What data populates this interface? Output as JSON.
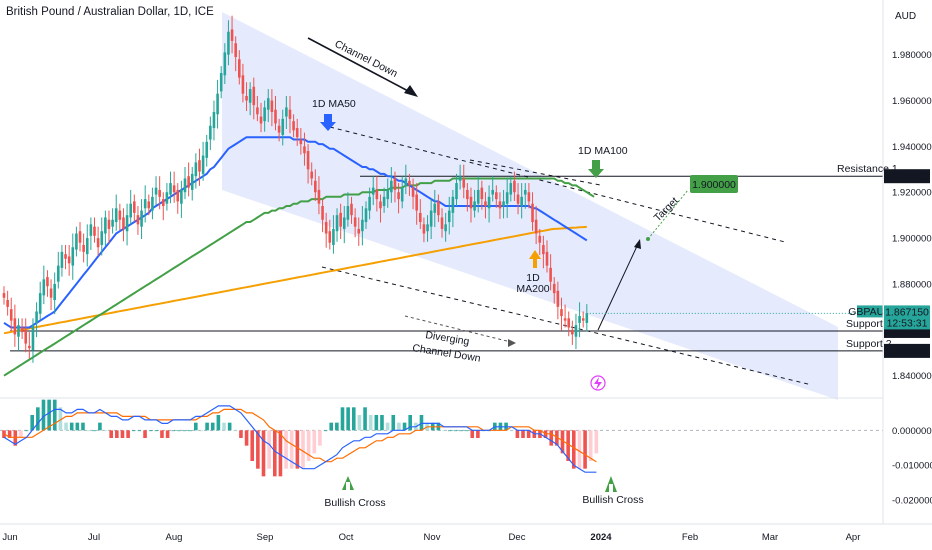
{
  "header": {
    "title": "British Pound / Australian Dollar, 1D, ICE",
    "currency": "AUD"
  },
  "colors": {
    "bull": "#26a69a",
    "bear": "#ef5350",
    "ma50": "#2962ff",
    "ma100": "#43a047",
    "ma200": "#f59f00",
    "channel": "#cfd8fb",
    "macd": "#2962ff",
    "signal": "#ff6d00"
  },
  "chart_data": {
    "type": "candlestick",
    "symbol": "GBPAUD",
    "price_axis": {
      "ticks": [
        "1.980000",
        "1.960000",
        "1.940000",
        "1.920000",
        "1.900000",
        "1.880000",
        "1.840000"
      ],
      "min": 1.832,
      "max": 1.996
    },
    "time_axis": [
      "Jun",
      "Jul",
      "Aug",
      "Sep",
      "Oct",
      "Nov",
      "Dec",
      "2024",
      "Feb",
      "Mar",
      "Apr"
    ],
    "last_price": "1.867150",
    "countdown": "12:53:31",
    "levels": [
      {
        "name": "Resistance 1",
        "value": 1.927,
        "label": "1.927000"
      },
      {
        "name": "Support 1",
        "value": 1.8595,
        "label": "1.859550"
      },
      {
        "name": "Support 2",
        "value": 1.8508,
        "label": "1.850815"
      }
    ],
    "target": {
      "value": 1.9,
      "label": "1.900000",
      "text": "Target"
    },
    "annotations": {
      "channel_down": "Channel Down",
      "ma50": "1D MA50",
      "ma100": "1D MA100",
      "ma200_line1": "1D",
      "ma200_line2": "MA200",
      "diverging_line1": "Diverging",
      "diverging_line2": "Channel Down",
      "bullish_cross_1": "Bullish Cross",
      "bullish_cross_2": "Bullish Cross"
    },
    "macd_axis": {
      "ticks": [
        "0.000000",
        "-0.010000",
        "-0.020000"
      ],
      "min": -0.024,
      "max": 0.0087
    },
    "close_series": [
      1.874,
      1.87,
      1.864,
      1.858,
      1.862,
      1.859,
      1.854,
      1.852,
      1.862,
      1.868,
      1.876,
      1.882,
      1.879,
      1.874,
      1.88,
      1.888,
      1.894,
      1.891,
      1.889,
      1.896,
      1.902,
      1.898,
      1.894,
      1.9,
      1.906,
      1.901,
      1.896,
      1.903,
      1.909,
      1.904,
      1.908,
      1.913,
      1.908,
      1.904,
      1.91,
      1.915,
      1.911,
      1.906,
      1.912,
      1.917,
      1.913,
      1.918,
      1.922,
      1.918,
      1.914,
      1.92,
      1.924,
      1.92,
      1.916,
      1.921,
      1.926,
      1.922,
      1.928,
      1.933,
      1.929,
      1.936,
      1.942,
      1.949,
      1.955,
      1.963,
      1.972,
      1.981,
      1.99,
      1.986,
      1.979,
      1.97,
      1.963,
      1.96,
      1.965,
      1.958,
      1.954,
      1.95,
      1.957,
      1.961,
      1.955,
      1.95,
      1.946,
      1.952,
      1.957,
      1.952,
      1.947,
      1.944,
      1.941,
      1.937,
      1.93,
      1.926,
      1.92,
      1.915,
      1.908,
      1.902,
      1.898,
      1.904,
      1.91,
      1.905,
      1.909,
      1.914,
      1.91,
      1.905,
      1.902,
      1.908,
      1.913,
      1.918,
      1.922,
      1.917,
      1.913,
      1.918,
      1.921,
      1.925,
      1.921,
      1.917,
      1.922,
      1.926,
      1.923,
      1.918,
      1.912,
      1.907,
      1.902,
      1.906,
      1.912,
      1.915,
      1.91,
      1.904,
      1.906,
      1.912,
      1.918,
      1.924,
      1.927,
      1.922,
      1.917,
      1.913,
      1.916,
      1.921,
      1.917,
      1.914,
      1.918,
      1.921,
      1.917,
      1.913,
      1.916,
      1.92,
      1.924,
      1.92,
      1.915,
      1.918,
      1.921,
      1.916,
      1.907,
      1.902,
      1.898,
      1.893,
      1.888,
      1.881,
      1.876,
      1.87,
      1.866,
      1.864,
      1.861,
      1.858,
      1.862,
      1.866,
      1.864,
      1.8672
    ],
    "ma50": [
      1.863,
      1.862,
      1.861,
      1.861,
      1.861,
      1.861,
      1.861,
      1.861,
      1.862,
      1.863,
      1.864,
      1.865,
      1.866,
      1.867,
      1.868,
      1.87,
      1.872,
      1.874,
      1.876,
      1.878,
      1.88,
      1.882,
      1.884,
      1.886,
      1.888,
      1.89,
      1.892,
      1.894,
      1.896,
      1.898,
      1.9,
      1.902,
      1.903,
      1.904,
      1.905,
      1.906,
      1.907,
      1.908,
      1.909,
      1.91,
      1.911,
      1.913,
      1.914,
      1.915,
      1.916,
      1.917,
      1.918,
      1.919,
      1.92,
      1.921,
      1.922,
      1.923,
      1.924,
      1.925,
      1.926,
      1.927,
      1.928,
      1.93,
      1.931,
      1.933,
      1.935,
      1.937,
      1.939,
      1.94,
      1.941,
      1.942,
      1.943,
      1.944,
      1.944,
      1.944,
      1.944,
      1.944,
      1.944,
      1.944,
      1.944,
      1.944,
      1.944,
      1.944,
      1.944,
      1.944,
      1.943,
      1.943,
      1.943,
      1.943,
      1.942,
      1.942,
      1.942,
      1.941,
      1.941,
      1.94,
      1.939,
      1.939,
      1.938,
      1.937,
      1.936,
      1.935,
      1.934,
      1.933,
      1.932,
      1.931,
      1.931,
      1.93,
      1.93,
      1.929,
      1.928,
      1.928,
      1.927,
      1.927,
      1.926,
      1.925,
      1.925,
      1.924,
      1.923,
      1.922,
      1.921,
      1.92,
      1.919,
      1.918,
      1.917,
      1.916,
      1.916,
      1.915,
      1.914,
      1.914,
      1.914,
      1.914,
      1.914,
      1.914,
      1.914,
      1.914,
      1.914,
      1.914,
      1.914,
      1.914,
      1.914,
      1.914,
      1.914,
      1.914,
      1.914,
      1.914,
      1.914,
      1.914,
      1.914,
      1.914,
      1.914,
      1.914,
      1.913,
      1.913,
      1.912,
      1.911,
      1.91,
      1.909,
      1.908,
      1.907,
      1.906,
      1.905,
      1.904,
      1.903,
      1.902,
      1.901,
      1.9,
      1.899
    ],
    "ma100": [
      1.84,
      1.841,
      1.842,
      1.843,
      1.844,
      1.845,
      1.846,
      1.847,
      1.848,
      1.849,
      1.85,
      1.851,
      1.852,
      1.853,
      1.854,
      1.855,
      1.856,
      1.857,
      1.858,
      1.859,
      1.86,
      1.861,
      1.862,
      1.863,
      1.864,
      1.865,
      1.866,
      1.867,
      1.868,
      1.869,
      1.87,
      1.871,
      1.872,
      1.873,
      1.874,
      1.875,
      1.876,
      1.877,
      1.878,
      1.879,
      1.88,
      1.881,
      1.882,
      1.883,
      1.884,
      1.885,
      1.886,
      1.887,
      1.888,
      1.889,
      1.89,
      1.891,
      1.892,
      1.893,
      1.894,
      1.895,
      1.896,
      1.897,
      1.898,
      1.899,
      1.9,
      1.901,
      1.902,
      1.903,
      1.904,
      1.905,
      1.906,
      1.907,
      1.907,
      1.908,
      1.909,
      1.91,
      1.911,
      1.911,
      1.912,
      1.912,
      1.913,
      1.913,
      1.914,
      1.914,
      1.915,
      1.915,
      1.916,
      1.916,
      1.916,
      1.917,
      1.917,
      1.917,
      1.917,
      1.918,
      1.918,
      1.918,
      1.918,
      1.918,
      1.919,
      1.919,
      1.919,
      1.919,
      1.919,
      1.92,
      1.92,
      1.92,
      1.92,
      1.921,
      1.921,
      1.921,
      1.921,
      1.922,
      1.922,
      1.922,
      1.922,
      1.923,
      1.923,
      1.923,
      1.923,
      1.924,
      1.924,
      1.924,
      1.924,
      1.925,
      1.925,
      1.925,
      1.925,
      1.925,
      1.926,
      1.926,
      1.926,
      1.926,
      1.926,
      1.926,
      1.926,
      1.926,
      1.926,
      1.926,
      1.926,
      1.926,
      1.926,
      1.926,
      1.926,
      1.926,
      1.926,
      1.926,
      1.926,
      1.926,
      1.926,
      1.926,
      1.926,
      1.926,
      1.926,
      1.926,
      1.926,
      1.926,
      1.926,
      1.925,
      1.925,
      1.924,
      1.924,
      1.923,
      1.923,
      1.922,
      1.921,
      1.92,
      1.919,
      1.918
    ],
    "ma200": [
      1.8585,
      1.8588,
      1.8591,
      1.8594,
      1.8597,
      1.86,
      1.8603,
      1.8606,
      1.8609,
      1.8612,
      1.8615,
      1.8618,
      1.8621,
      1.8624,
      1.8627,
      1.863,
      1.8633,
      1.8636,
      1.8639,
      1.8642,
      1.8645,
      1.8648,
      1.8651,
      1.8654,
      1.8657,
      1.866,
      1.8663,
      1.8666,
      1.8669,
      1.8672,
      1.8675,
      1.8678,
      1.8681,
      1.8684,
      1.8687,
      1.869,
      1.8693,
      1.8696,
      1.8699,
      1.8702,
      1.8705,
      1.8708,
      1.8711,
      1.8714,
      1.8717,
      1.872,
      1.8723,
      1.8726,
      1.8729,
      1.8732,
      1.8735,
      1.8738,
      1.8741,
      1.8744,
      1.8747,
      1.875,
      1.8753,
      1.8756,
      1.8759,
      1.8762,
      1.8765,
      1.8768,
      1.8771,
      1.8774,
      1.8777,
      1.878,
      1.8783,
      1.8786,
      1.8789,
      1.8792,
      1.8795,
      1.8798,
      1.8801,
      1.8804,
      1.8807,
      1.881,
      1.8813,
      1.8816,
      1.8819,
      1.8822,
      1.8825,
      1.8828,
      1.8831,
      1.8834,
      1.8837,
      1.884,
      1.8843,
      1.8846,
      1.8849,
      1.8852,
      1.8855,
      1.8858,
      1.8861,
      1.8864,
      1.8867,
      1.887,
      1.8873,
      1.8876,
      1.8879,
      1.8882,
      1.8885,
      1.8888,
      1.8891,
      1.8894,
      1.8897,
      1.89,
      1.8903,
      1.8906,
      1.8909,
      1.8912,
      1.8915,
      1.8918,
      1.8921,
      1.8924,
      1.8927,
      1.893,
      1.8933,
      1.8936,
      1.8939,
      1.8942,
      1.8945,
      1.8948,
      1.8951,
      1.8954,
      1.8957,
      1.896,
      1.8963,
      1.8966,
      1.8969,
      1.8972,
      1.8975,
      1.8978,
      1.8981,
      1.8984,
      1.8987,
      1.899,
      1.8993,
      1.8996,
      1.8999,
      1.9002,
      1.9005,
      1.9008,
      1.9011,
      1.9014,
      1.9017,
      1.902,
      1.9023,
      1.9026,
      1.9029,
      1.9032,
      1.9035,
      1.9038,
      1.904,
      1.9041,
      1.9042,
      1.9043,
      1.9044,
      1.9045,
      1.9046,
      1.9047,
      1.9048,
      1.9049
    ],
    "macd": [
      -0.002,
      -0.003,
      -0.004,
      -0.003,
      -0.002,
      0.0,
      0.002,
      0.004,
      0.005,
      0.006,
      0.006,
      0.005,
      0.005,
      0.006,
      0.006,
      0.005,
      0.005,
      0.006,
      0.005,
      0.004,
      0.004,
      0.003,
      0.003,
      0.004,
      0.004,
      0.003,
      0.003,
      0.003,
      0.002,
      0.002,
      0.003,
      0.003,
      0.003,
      0.003,
      0.004,
      0.004,
      0.005,
      0.006,
      0.007,
      0.007,
      0.007,
      0.006,
      0.005,
      0.003,
      0.001,
      -0.001,
      -0.003,
      -0.004,
      -0.006,
      -0.007,
      -0.008,
      -0.009,
      -0.01,
      -0.011,
      -0.011,
      -0.011,
      -0.01,
      -0.009,
      -0.008,
      -0.007,
      -0.005,
      -0.004,
      -0.003,
      -0.003,
      -0.002,
      -0.002,
      -0.001,
      -0.001,
      -0.001,
      0.0,
      0.0,
      0.0,
      0.001,
      0.001,
      0.002,
      0.002,
      0.002,
      0.002,
      0.001,
      0.001,
      0.001,
      0.001,
      0.001,
      0.0,
      0.0,
      0.0,
      0.0,
      0.001,
      0.001,
      0.001,
      0.001,
      0.0,
      0.0,
      0.0,
      -0.001,
      -0.001,
      -0.002,
      -0.003,
      -0.004,
      -0.006,
      -0.008,
      -0.01,
      -0.011,
      -0.012,
      -0.012,
      -0.012
    ],
    "signal": [
      -0.001,
      -0.002,
      -0.002,
      -0.002,
      -0.002,
      -0.002,
      -0.001,
      0.0,
      0.001,
      0.002,
      0.003,
      0.004,
      0.004,
      0.005,
      0.005,
      0.005,
      0.005,
      0.005,
      0.005,
      0.005,
      0.005,
      0.004,
      0.004,
      0.004,
      0.004,
      0.004,
      0.003,
      0.003,
      0.003,
      0.003,
      0.003,
      0.003,
      0.003,
      0.003,
      0.003,
      0.004,
      0.004,
      0.005,
      0.005,
      0.006,
      0.006,
      0.006,
      0.006,
      0.005,
      0.005,
      0.004,
      0.003,
      0.001,
      0.0,
      -0.001,
      -0.003,
      -0.004,
      -0.005,
      -0.006,
      -0.007,
      -0.008,
      -0.008,
      -0.009,
      -0.009,
      -0.008,
      -0.008,
      -0.007,
      -0.006,
      -0.005,
      -0.005,
      -0.004,
      -0.003,
      -0.003,
      -0.002,
      -0.002,
      -0.001,
      -0.001,
      -0.001,
      0.0,
      0.0,
      0.001,
      0.001,
      0.001,
      0.001,
      0.001,
      0.001,
      0.001,
      0.001,
      0.001,
      0.001,
      0.0,
      0.0,
      0.0,
      0.0,
      0.0,
      0.001,
      0.001,
      0.001,
      0.001,
      0.0,
      0.0,
      -0.001,
      -0.001,
      -0.002,
      -0.003,
      -0.004,
      -0.005,
      -0.006,
      -0.007,
      -0.008,
      -0.009
    ]
  }
}
